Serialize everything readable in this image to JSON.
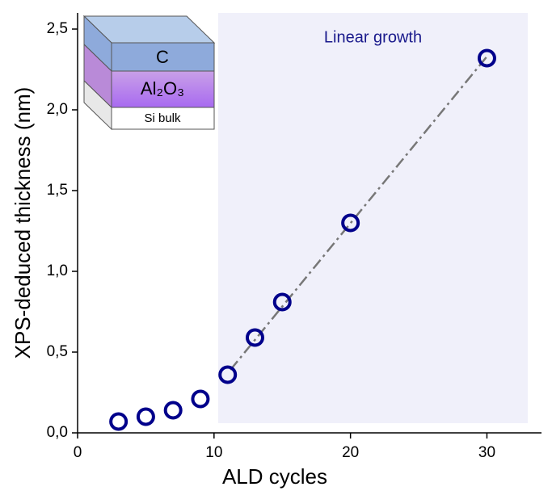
{
  "chart_data": {
    "type": "scatter",
    "x_label": "ALD cycles",
    "y_label": "XPS-deduced thickness (nm)",
    "annotation": "Linear growth",
    "layer_labels": [
      "C",
      "Al₂O₃",
      "Si bulk"
    ],
    "x": [
      3,
      5,
      7,
      9,
      11,
      13,
      15,
      20,
      30
    ],
    "series": [
      {
        "color": "#00008b",
        "values": [
          0.07,
          0.1,
          0.14,
          0.21,
          0.36,
          0.59,
          0.81,
          1.3,
          2.32
        ]
      }
    ],
    "fit_line": {
      "x": [
        11.2,
        30
      ],
      "y": [
        0.39,
        2.33
      ],
      "color": "#777777"
    },
    "shaded_region": {
      "xlim": [
        10.3,
        33
      ],
      "ylim": [
        0.06,
        2.6
      ],
      "color": "#f0f0fa"
    },
    "xlim": [
      0,
      34
    ],
    "ylim": [
      0,
      2.6
    ],
    "xticks": [
      0,
      10,
      20,
      30
    ],
    "yticks": [
      {
        "value": 0,
        "label": "0,0"
      },
      {
        "value": 0.5,
        "label": "0,5"
      },
      {
        "value": 1,
        "label": "1,0"
      },
      {
        "value": 1.5,
        "label": "1,5"
      },
      {
        "value": 2,
        "label": "2,0"
      },
      {
        "value": 2.5,
        "label": "2,5"
      }
    ]
  }
}
